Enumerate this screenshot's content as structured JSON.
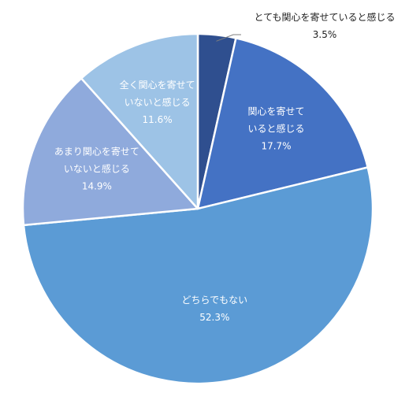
{
  "chart_data": {
    "type": "pie",
    "start_angle_deg": 0,
    "direction": "clockwise",
    "slices": [
      {
        "label_lines": [
          "とても関心を寄せていると感じる"
        ],
        "value": 3.5,
        "value_label": "3.5%",
        "color": "#2F4F8F",
        "label_position": "outside"
      },
      {
        "label_lines": [
          "関心を寄せて",
          "いると感じる"
        ],
        "value": 17.7,
        "value_label": "17.7%",
        "color": "#4472C4",
        "label_position": "inside"
      },
      {
        "label_lines": [
          "どちらでもない"
        ],
        "value": 52.3,
        "value_label": "52.3%",
        "color": "#5B9BD5",
        "label_position": "inside"
      },
      {
        "label_lines": [
          "あまり関心を寄せて",
          "いないと感じる"
        ],
        "value": 14.9,
        "value_label": "14.9%",
        "color": "#8FAADC",
        "label_position": "inside"
      },
      {
        "label_lines": [
          "全く関心を寄せて",
          "いないと感じる"
        ],
        "value": 11.6,
        "value_label": "11.6%",
        "color": "#9DC3E6",
        "label_position": "inside"
      }
    ]
  }
}
